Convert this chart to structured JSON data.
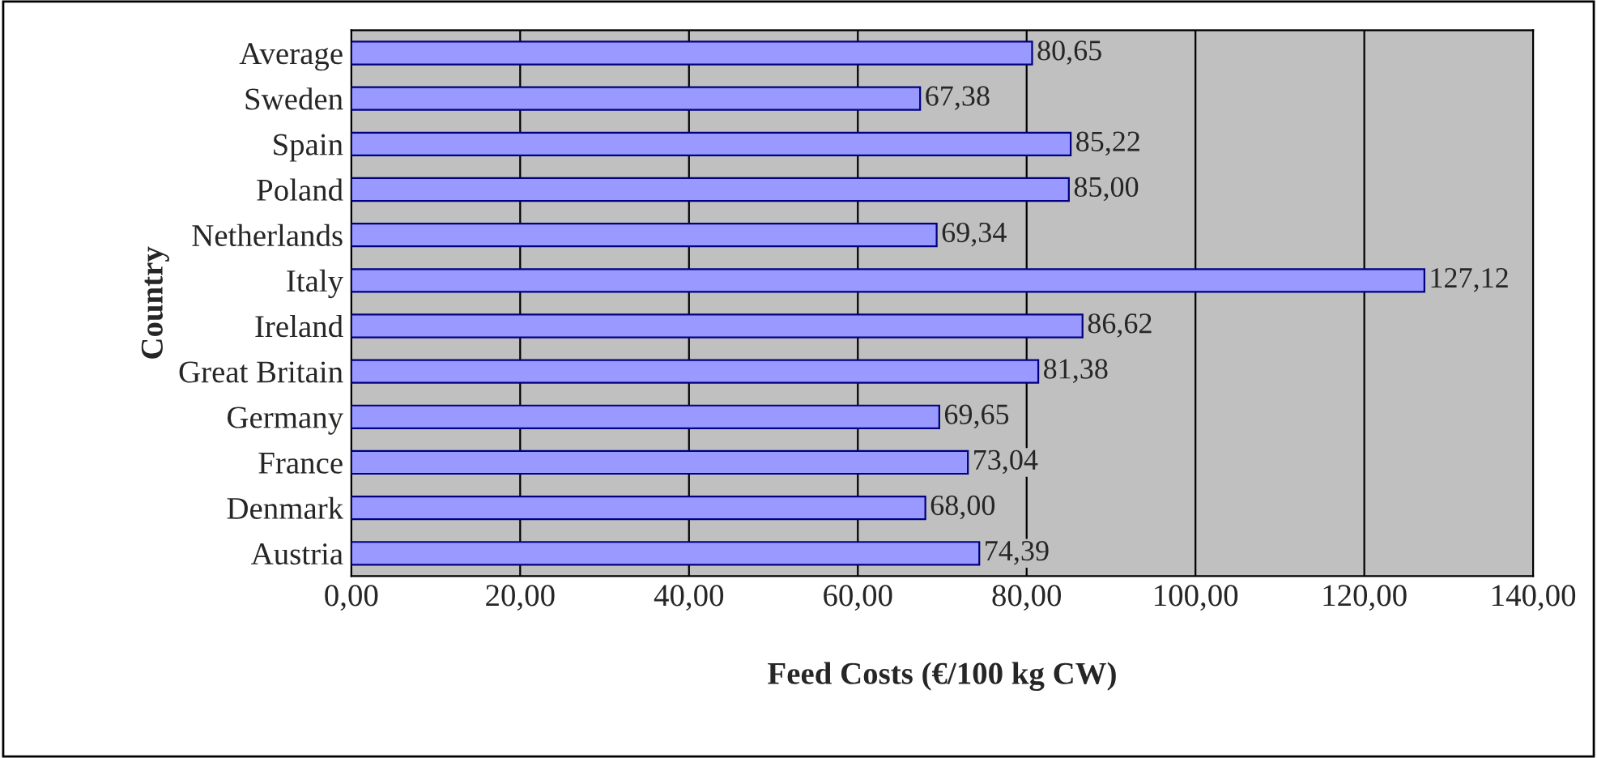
{
  "chart_data": {
    "type": "bar",
    "orientation": "horizontal",
    "xlabel": "Feed Costs (€/100 kg CW)",
    "ylabel": "Country",
    "categories": [
      "Average",
      "Sweden",
      "Spain",
      "Poland",
      "Netherlands",
      "Italy",
      "Ireland",
      "Great Britain",
      "Germany",
      "France",
      "Denmark",
      "Austria"
    ],
    "values": [
      80.65,
      67.38,
      85.22,
      85.0,
      69.34,
      127.12,
      86.62,
      81.38,
      69.65,
      73.04,
      68.0,
      74.39
    ],
    "value_labels": [
      "80,65",
      "67,38",
      "85,22",
      "85,00",
      "69,34",
      "127,12",
      "86,62",
      "81,38",
      "69,65",
      "73,04",
      "68,00",
      "74,39"
    ],
    "color": "#9999ff",
    "xlim": [
      0,
      140
    ],
    "xticks": [
      {
        "value": 0,
        "label": "0,00"
      },
      {
        "value": 20,
        "label": "20,00"
      },
      {
        "value": 40,
        "label": "40,00"
      },
      {
        "value": 60,
        "label": "60,00"
      },
      {
        "value": 80,
        "label": "80,00"
      },
      {
        "value": 100,
        "label": "100,00"
      },
      {
        "value": 120,
        "label": "120,00"
      },
      {
        "value": 140,
        "label": "140,00"
      }
    ],
    "grid": "x",
    "legend": false
  }
}
